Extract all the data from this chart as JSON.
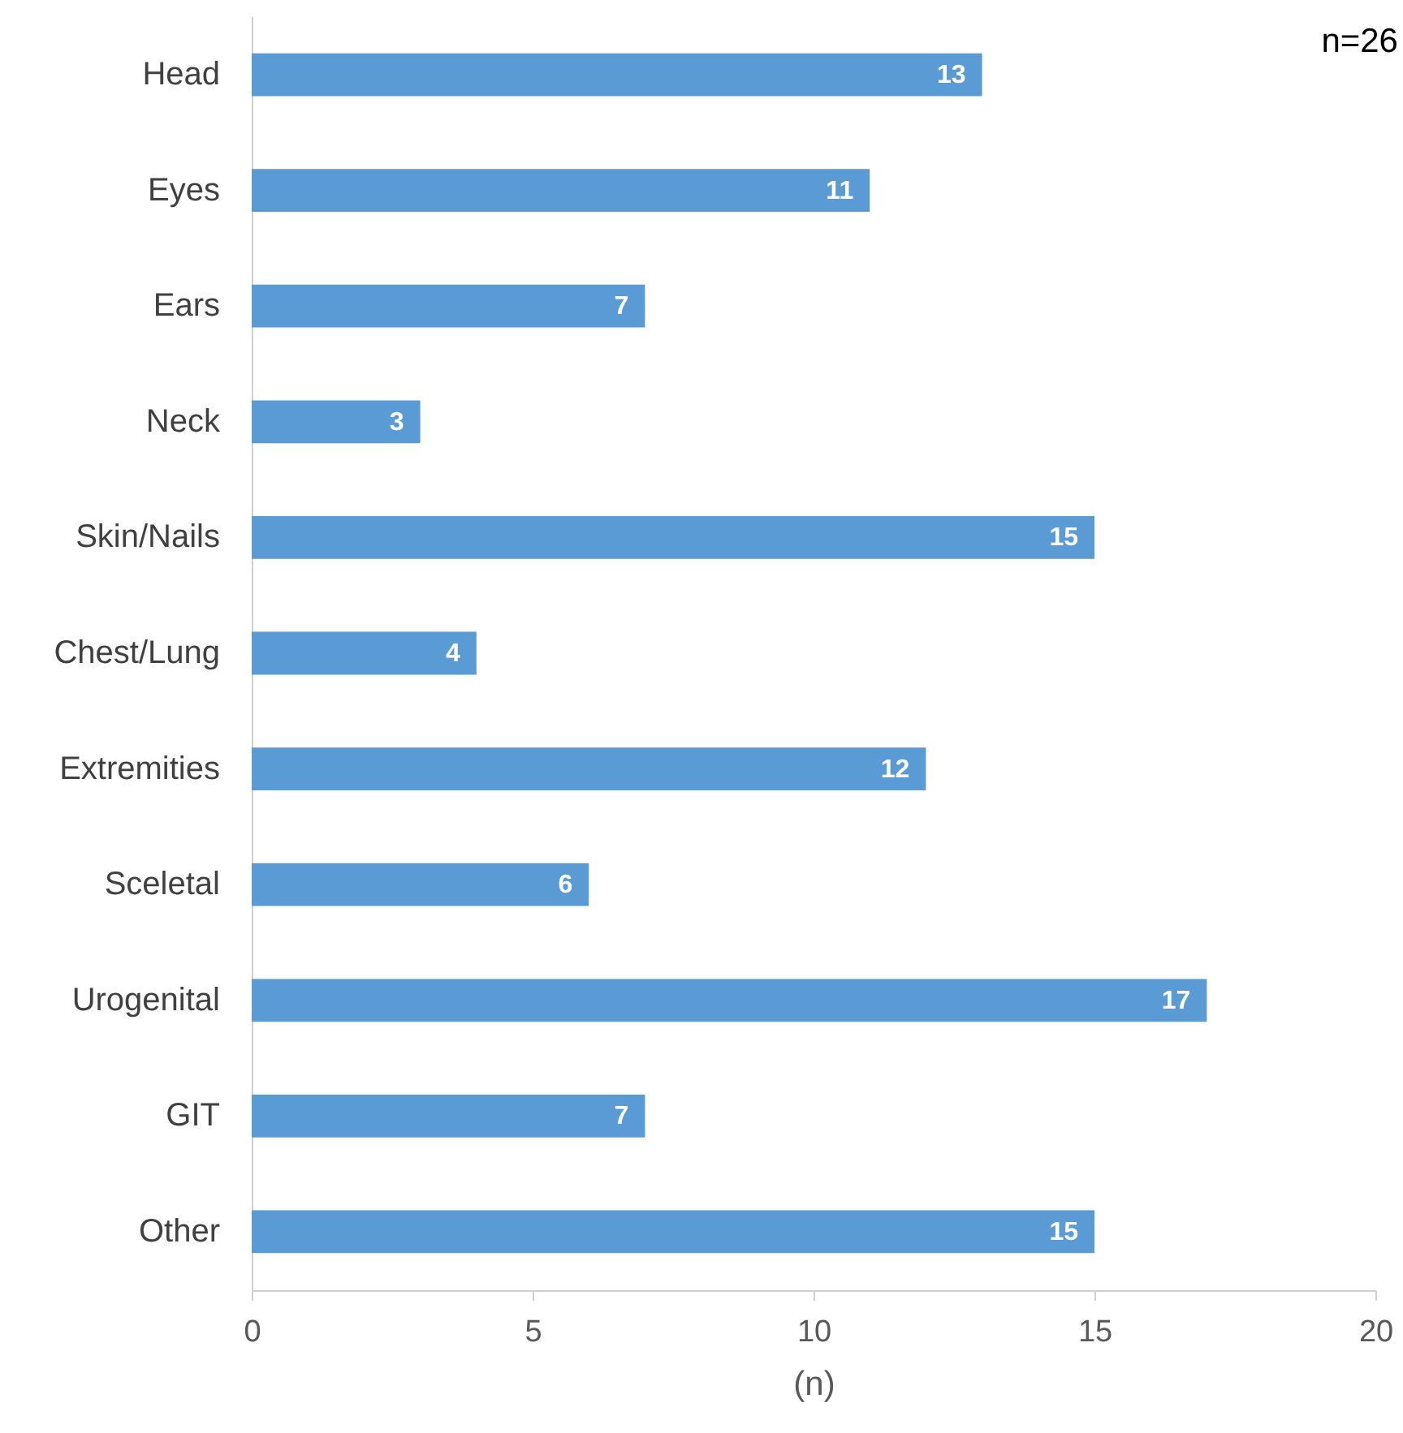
{
  "chart_data": {
    "type": "bar",
    "orientation": "horizontal",
    "categories": [
      "Head",
      "Eyes",
      "Ears",
      "Neck",
      "Skin/Nails",
      "Chest/Lung",
      "Extremities",
      "Sceletal",
      "Urogenital",
      "GIT",
      "Other"
    ],
    "values": [
      13,
      11,
      7,
      3,
      15,
      4,
      12,
      6,
      17,
      7,
      15
    ],
    "color": "#5b9bd5",
    "xlabel": "(n)",
    "xlim": [
      0,
      20
    ],
    "xticks": [
      0,
      5,
      10,
      15,
      20
    ],
    "grid": false,
    "data_labels": true,
    "annotations": [
      "n=26"
    ]
  }
}
